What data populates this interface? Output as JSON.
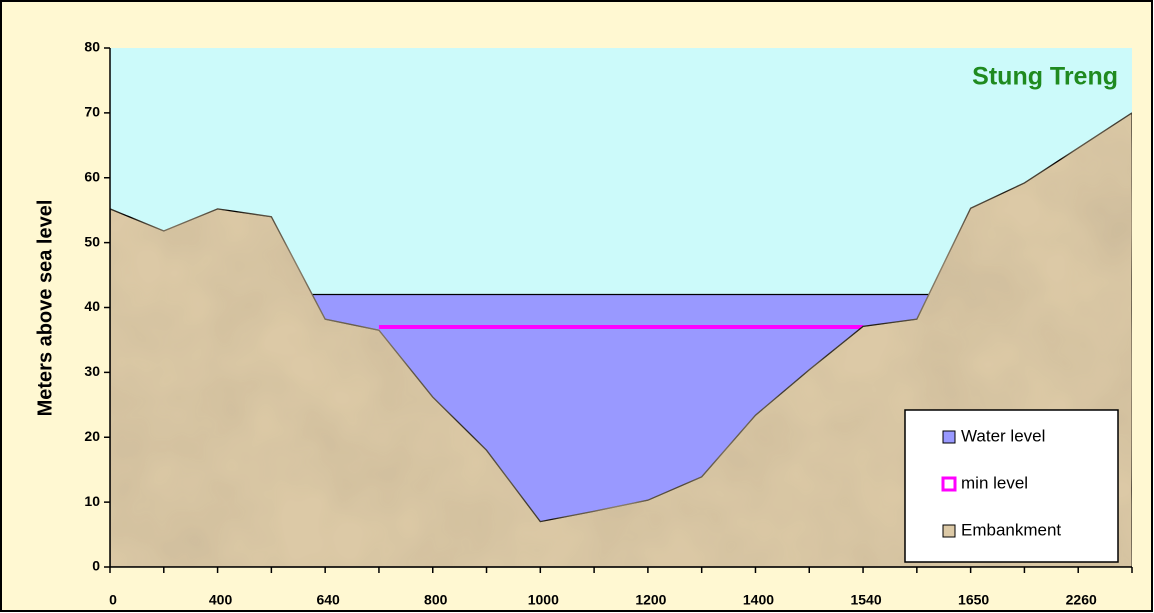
{
  "chart_data": {
    "type": "area",
    "title": "Stung Treng",
    "y_label": "Meters above sea level",
    "categories": [
      0,
      null,
      400,
      null,
      640,
      null,
      800,
      null,
      1000,
      null,
      1200,
      null,
      1400,
      null,
      1540,
      null,
      1650,
      null,
      2260,
      null
    ],
    "series": [
      {
        "name": "Water level",
        "type": "area",
        "color": "#9999ff",
        "values": [
          null,
          null,
          null,
          42,
          42,
          42,
          42,
          42,
          42,
          42,
          42,
          42,
          42,
          42,
          42,
          42,
          42,
          null,
          null,
          null
        ]
      },
      {
        "name": "min level",
        "type": "line",
        "color": "#ff00ff",
        "values": [
          null,
          null,
          null,
          null,
          null,
          37,
          37,
          37,
          37,
          37,
          37,
          37,
          37,
          37,
          37,
          null,
          null,
          null,
          null,
          null
        ]
      },
      {
        "name": "Embankment",
        "type": "area",
        "color": "#dcc9a6",
        "values": [
          55.2,
          51.8,
          55.2,
          54,
          38.2,
          36.5,
          26.2,
          18,
          7,
          8.6,
          10.3,
          13.9,
          23.4,
          30.4,
          37.1,
          38.2,
          55.3,
          59.2,
          64.6,
          70
        ]
      }
    ],
    "ylim": [
      0,
      80
    ],
    "yticks": [
      0,
      10,
      20,
      30,
      40,
      50,
      60,
      70,
      80
    ],
    "plot_background": "#ccfafa",
    "legend": "lower right"
  }
}
